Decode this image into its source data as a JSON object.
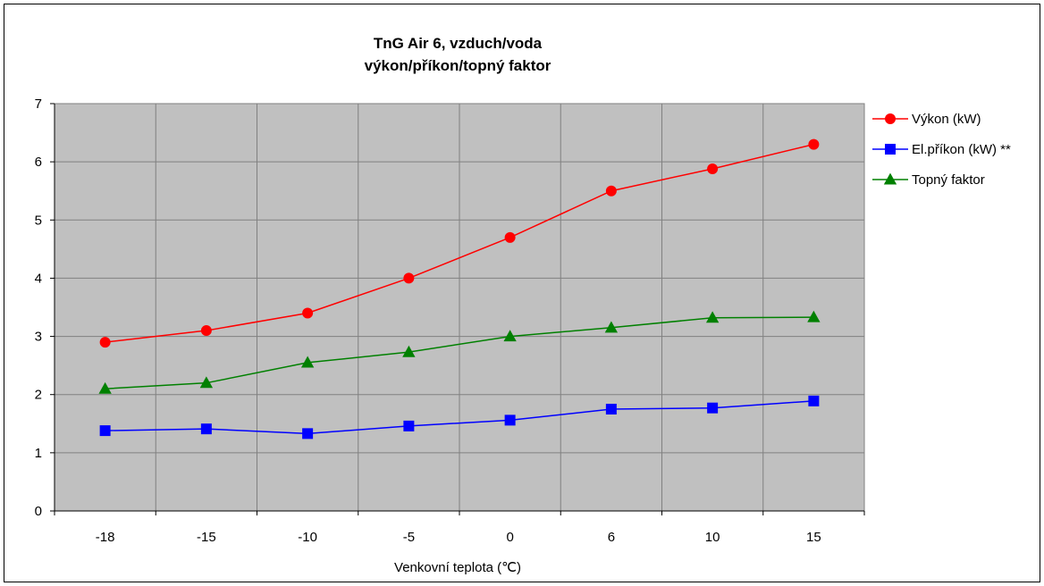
{
  "chart_data": {
    "type": "line",
    "title": [
      "TnG Air 6, vzduch/voda",
      "výkon/příkon/topný faktor"
    ],
    "xlabel": "Venkovní teplota (℃)",
    "ylabel": "",
    "categories": [
      "-18",
      "-15",
      "-10",
      "-5",
      "0",
      "6",
      "10",
      "15"
    ],
    "ylim": [
      0,
      7
    ],
    "yticks": [
      "0",
      "1",
      "2",
      "3",
      "4",
      "5",
      "6",
      "7"
    ],
    "grid": true,
    "legend_position": "right",
    "series": [
      {
        "name": "Výkon (kW)",
        "color": "#ff0000",
        "marker": "circle",
        "values": [
          2.9,
          3.1,
          3.4,
          4.0,
          4.7,
          5.5,
          5.88,
          6.3
        ]
      },
      {
        "name": "El.příkon (kW) **",
        "color": "#0000ff",
        "marker": "square",
        "values": [
          1.38,
          1.41,
          1.33,
          1.46,
          1.56,
          1.75,
          1.77,
          1.89
        ]
      },
      {
        "name": "Topný faktor",
        "color": "#008000",
        "marker": "triangle",
        "values": [
          2.1,
          2.2,
          2.55,
          2.73,
          3.0,
          3.15,
          3.32,
          3.33
        ]
      }
    ]
  }
}
